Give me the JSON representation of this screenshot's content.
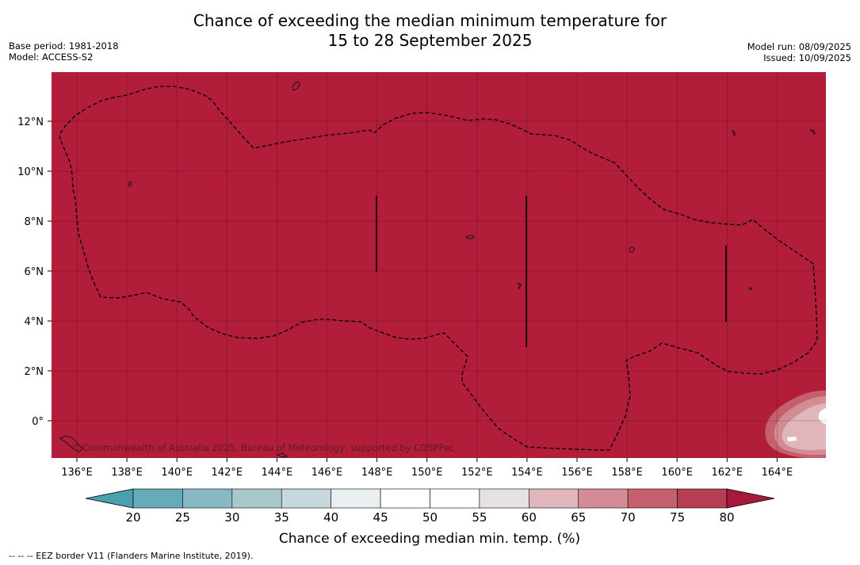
{
  "title_line1": "Chance of exceeding the median minimum temperature for",
  "title_line2": "15 to 28 September 2025",
  "base_period": "Base period: 1981-2018",
  "model": "Model: ACCESS-S2",
  "model_run": "Model run: 08/09/2025",
  "issued": "Issued: 10/09/2025",
  "copyright": "© Commonwealth of Australia 2025, Bureau of Meteorology, supported by COSPPac",
  "footer": "-- -- -- EEZ border V11 (Flanders Marine Institute, 2019).",
  "map": {
    "lon_ticks": [
      "136°E",
      "138°E",
      "140°E",
      "142°E",
      "144°E",
      "146°E",
      "148°E",
      "150°E",
      "152°E",
      "154°E",
      "156°E",
      "158°E",
      "160°E",
      "162°E",
      "164°E"
    ],
    "lat_ticks": [
      "12°N",
      "10°N",
      "8°N",
      "6°N",
      "4°N",
      "2°N",
      "0°"
    ],
    "fill_color": "#b21e3a"
  },
  "colorbar": {
    "title": "Chance of exceeding median min. temp. (%)",
    "ticks": [
      "20",
      "25",
      "30",
      "35",
      "40",
      "45",
      "50",
      "55",
      "60",
      "65",
      "70",
      "75",
      "80"
    ],
    "under_color": "#4aa0ad",
    "over_color": "#a8183a",
    "colors": [
      "#65abba",
      "#87b8c3",
      "#a8c8cc",
      "#c7d8dc",
      "#e9eef0",
      "#ffffff",
      "#ffffff",
      "#e6e2e3",
      "#e0b6bc",
      "#d48c94",
      "#c5616f",
      "#b63e51"
    ]
  }
}
